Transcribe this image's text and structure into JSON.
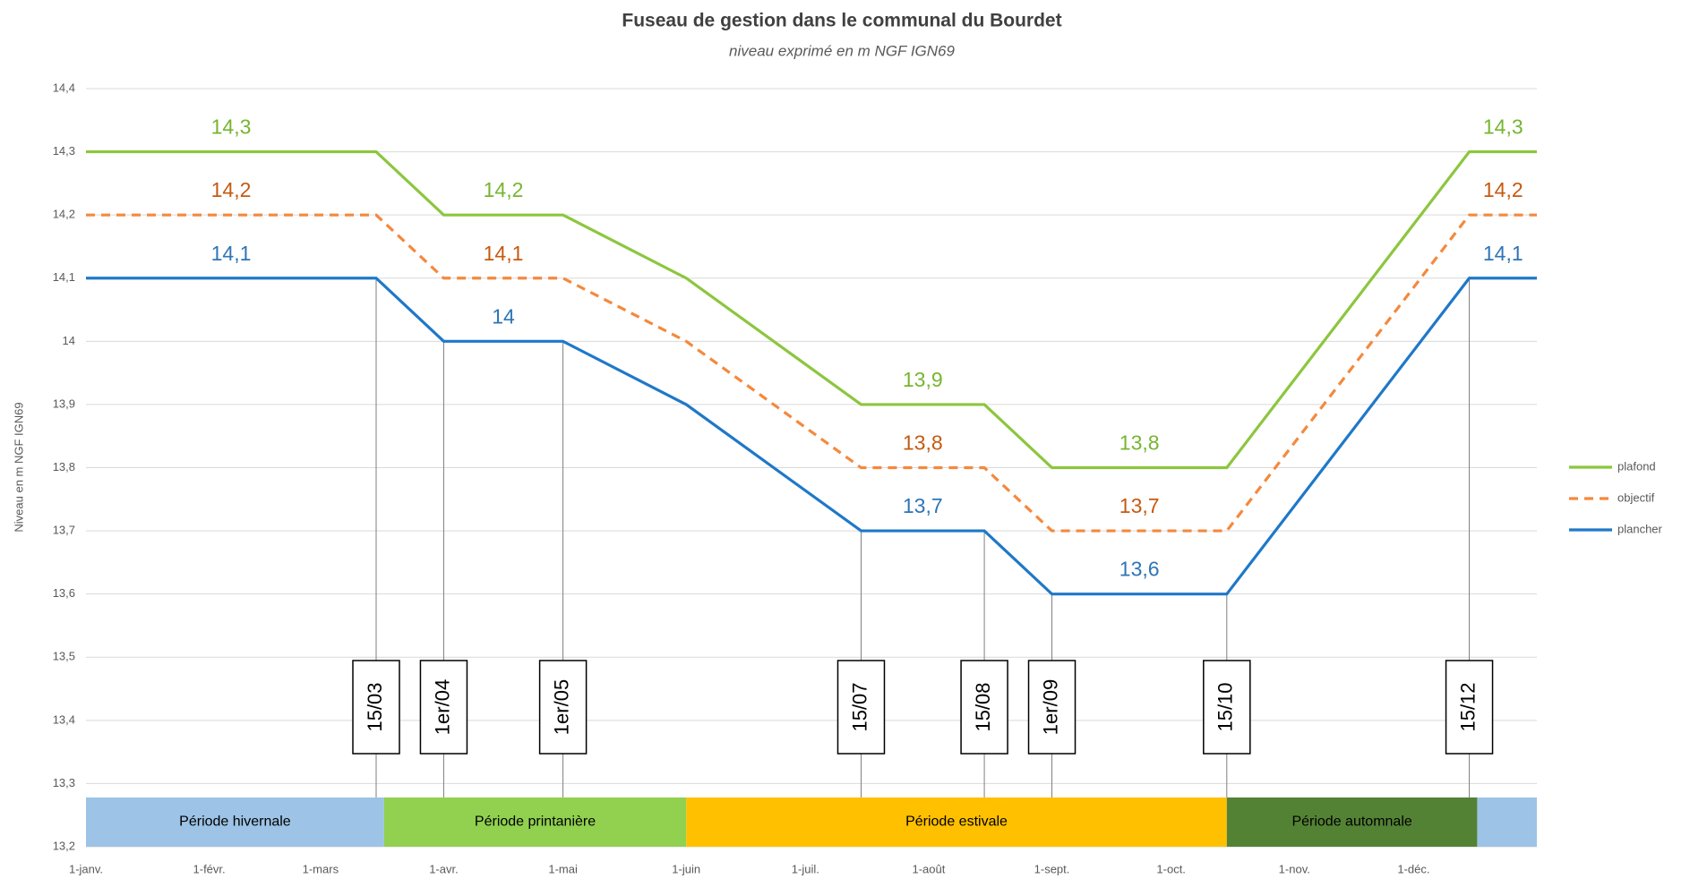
{
  "chart_data": {
    "type": "line",
    "title": "Fuseau de gestion dans le communal du Bourdet",
    "subtitle": "niveau exprimé en m NGF IGN69",
    "ylabel": "Niveau en m NGF IGN69",
    "x": [
      0,
      73,
      90,
      120,
      151,
      195,
      226,
      243,
      287,
      348,
      365
    ],
    "x_labels": [
      null,
      "15/03",
      "1er/04",
      "1er/05",
      null,
      "15/07",
      "15/08",
      "1er/09",
      "15/10",
      "15/12",
      null
    ],
    "xlim": [
      0,
      365
    ],
    "xticks": [
      {
        "value": 0,
        "label": "1-janv."
      },
      {
        "value": 31,
        "label": "1-févr."
      },
      {
        "value": 59,
        "label": "1-mars"
      },
      {
        "value": 90,
        "label": "1-avr."
      },
      {
        "value": 120,
        "label": "1-mai"
      },
      {
        "value": 151,
        "label": "1-juin"
      },
      {
        "value": 181,
        "label": "1-juil."
      },
      {
        "value": 212,
        "label": "1-août"
      },
      {
        "value": 243,
        "label": "1-sept."
      },
      {
        "value": 273,
        "label": "1-oct."
      },
      {
        "value": 304,
        "label": "1-nov."
      },
      {
        "value": 334,
        "label": "1-déc."
      }
    ],
    "ylim": [
      13.2,
      14.4
    ],
    "yticks": [
      {
        "value": 13.2,
        "label": "13,2"
      },
      {
        "value": 13.3,
        "label": "13,3"
      },
      {
        "value": 13.4,
        "label": "13,4"
      },
      {
        "value": 13.5,
        "label": "13,5"
      },
      {
        "value": 13.6,
        "label": "13,6"
      },
      {
        "value": 13.7,
        "label": "13,7"
      },
      {
        "value": 13.8,
        "label": "13,8"
      },
      {
        "value": 13.9,
        "label": "13,9"
      },
      14,
      {
        "value": 14.1,
        "label": "14,1"
      },
      {
        "value": 14.2,
        "label": "14,2"
      },
      {
        "value": 14.3,
        "label": "14,3"
      },
      {
        "value": 14.4,
        "label": "14,4"
      }
    ],
    "grid": true,
    "legend": "right",
    "series": [
      {
        "name": "plafond",
        "color": "#8cc63e",
        "label_color": "#77b530",
        "dashed": false,
        "values": [
          14.3,
          14.3,
          14.2,
          14.2,
          14.1,
          13.9,
          13.9,
          13.8,
          13.8,
          14.3,
          14.3
        ],
        "value_labels": [
          "14,3",
          null,
          "14,2",
          null,
          null,
          "13,9",
          null,
          "13,8",
          null,
          "14,3",
          null
        ]
      },
      {
        "name": "objectif",
        "color": "#f4893d",
        "label_color": "#c55a11",
        "dashed": true,
        "values": [
          14.2,
          14.2,
          14.1,
          14.1,
          14.0,
          13.8,
          13.8,
          13.7,
          13.7,
          14.2,
          14.2
        ],
        "value_labels": [
          "14,2",
          null,
          "14,1",
          null,
          null,
          "13,8",
          null,
          "13,7",
          null,
          "14,2",
          null
        ]
      },
      {
        "name": "plancher",
        "color": "#1f78c8",
        "label_color": "#2e75b6",
        "dashed": false,
        "values": [
          14.1,
          14.1,
          14.0,
          14.0,
          13.9,
          13.7,
          13.7,
          13.6,
          13.6,
          14.1,
          14.1
        ],
        "value_labels": [
          "14,1",
          null,
          "14",
          null,
          null,
          "13,7",
          null,
          "13,6",
          null,
          "14,1",
          null
        ]
      }
    ],
    "periods": [
      {
        "name": "Période hivernale",
        "start": 0,
        "end": 75,
        "color": "#9dc3e6"
      },
      {
        "name": "Période printanière",
        "start": 75,
        "end": 151,
        "color": "#92d050"
      },
      {
        "name": "Période estivale",
        "start": 151,
        "end": 287,
        "color": "#ffc000"
      },
      {
        "name": "Période automnale",
        "start": 287,
        "end": 350,
        "color": "#548235"
      },
      {
        "name": null,
        "start": 350,
        "end": 365,
        "color": "#9dc3e6"
      }
    ]
  }
}
